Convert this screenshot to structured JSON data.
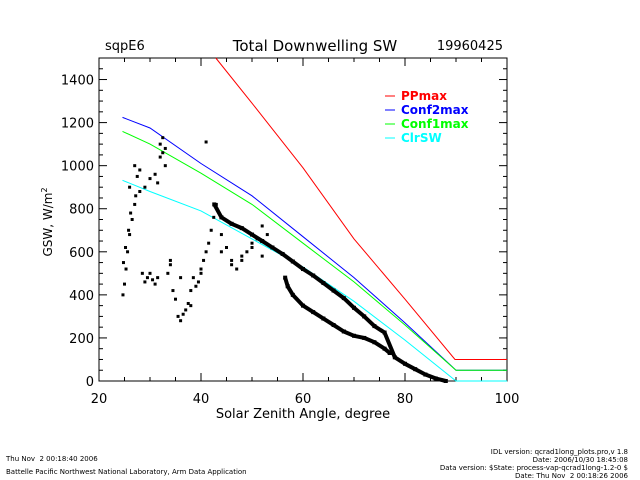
{
  "header": {
    "site": "sqpE6",
    "title": "Total Downwelling SW",
    "date": "19960425"
  },
  "chart_data": {
    "type": "line",
    "title": "Total Downwelling SW",
    "xlabel": "Solar Zenith Angle, degree",
    "ylabel": "GSW, W/m",
    "ylabel_sup": "2",
    "xlim": [
      20,
      100
    ],
    "ylim": [
      0,
      1500
    ],
    "xticks": [
      20,
      40,
      60,
      80,
      100
    ],
    "yticks": [
      0,
      200,
      400,
      600,
      800,
      1000,
      1200,
      1400
    ],
    "grid": false,
    "legend_position": "top-right",
    "series": [
      {
        "name": "PPmax",
        "color": "#ff0000",
        "x": [
          42.9,
          50,
          60,
          70,
          80,
          89.8,
          100
        ],
        "y": [
          1500,
          1290,
          990,
          660,
          380,
          100,
          100
        ]
      },
      {
        "name": "Conf2max",
        "color": "#0000ff",
        "x": [
          24.6,
          30,
          40,
          50,
          60,
          70,
          80,
          90,
          100
        ],
        "y": [
          1224,
          1175,
          1010,
          860,
          670,
          480,
          270,
          50,
          50
        ]
      },
      {
        "name": "Conf1max",
        "color": "#00ff00",
        "x": [
          24.6,
          30,
          40,
          50,
          60,
          70,
          80,
          90,
          100
        ],
        "y": [
          1159,
          1100,
          965,
          820,
          640,
          460,
          260,
          50,
          50
        ]
      },
      {
        "name": "ClrSW",
        "color": "#00ffff",
        "x": [
          24.6,
          30,
          40,
          50,
          60,
          70,
          80,
          90,
          100
        ],
        "y": [
          932,
          880,
          790,
          660,
          530,
          370,
          190,
          0,
          0
        ]
      }
    ],
    "observed": {
      "name": "Observed GSW",
      "color": "#000000",
      "main_band": {
        "x": [
          42.6,
          44,
          46,
          48,
          50,
          52,
          54,
          56,
          58,
          60,
          62,
          64,
          66,
          68,
          70,
          72,
          74,
          76,
          78,
          80,
          82,
          84,
          86,
          88
        ],
        "y": [
          820,
          760,
          730,
          710,
          680,
          650,
          620,
          590,
          555,
          520,
          490,
          455,
          420,
          385,
          340,
          300,
          255,
          225,
          110,
          80,
          55,
          30,
          12,
          0
        ]
      },
      "lower_band": {
        "x": [
          56.5,
          57,
          58,
          60,
          62,
          64,
          66,
          68,
          70,
          72,
          74,
          76,
          77
        ],
        "y": [
          480,
          440,
          400,
          350,
          320,
          290,
          260,
          230,
          210,
          200,
          180,
          150,
          130
        ]
      },
      "scatter": {
        "x": [
          24.7,
          25,
          25.3,
          25.6,
          26,
          26.5,
          27,
          27.5,
          28,
          28.5,
          29,
          29.5,
          30,
          30.5,
          31,
          31.5,
          32,
          32.5,
          33,
          33.5,
          34,
          34.5,
          35,
          35.5,
          36,
          36.5,
          37,
          37.5,
          38,
          38.5,
          39,
          39.5,
          40,
          40.5,
          41,
          41.5,
          42,
          42.5,
          43,
          44,
          45,
          46,
          47,
          48,
          49,
          50,
          51,
          52,
          26,
          27,
          28,
          29,
          30,
          31,
          32,
          33,
          41,
          24.8,
          25.2,
          25.8,
          26.2,
          27.2,
          31.5,
          32.5,
          34,
          36,
          38,
          40,
          44,
          46,
          48,
          50,
          52,
          53
        ],
        "y": [
          400,
          450,
          520,
          600,
          680,
          750,
          820,
          950,
          880,
          500,
          460,
          480,
          500,
          470,
          450,
          480,
          1100,
          1130,
          1080,
          500,
          540,
          420,
          380,
          300,
          280,
          310,
          330,
          360,
          420,
          480,
          440,
          460,
          500,
          560,
          600,
          640,
          700,
          760,
          820,
          680,
          620,
          560,
          520,
          580,
          600,
          620,
          660,
          720,
          900,
          1000,
          980,
          900,
          940,
          960,
          1040,
          1000,
          1110,
          550,
          620,
          700,
          780,
          860,
          920,
          1060,
          560,
          480,
          350,
          520,
          600,
          540,
          560,
          640,
          580,
          680
        ]
      }
    }
  },
  "footer": {
    "left_line1": "Thu Nov  2 00:18:40 2006",
    "left_line2": "Battelle Pacific Northwest National Laboratory, Arm Data Application",
    "right_line1": "IDL version: qcrad1long_plots.pro,v 1.8",
    "right_line2": "Date: 2006/10/30 18:45:08",
    "right_line3": "Data version: $State: process-vap-qcrad1long-1.2-0 $",
    "right_line4": "Date: Thu Nov  2 00:18:26 2006"
  }
}
